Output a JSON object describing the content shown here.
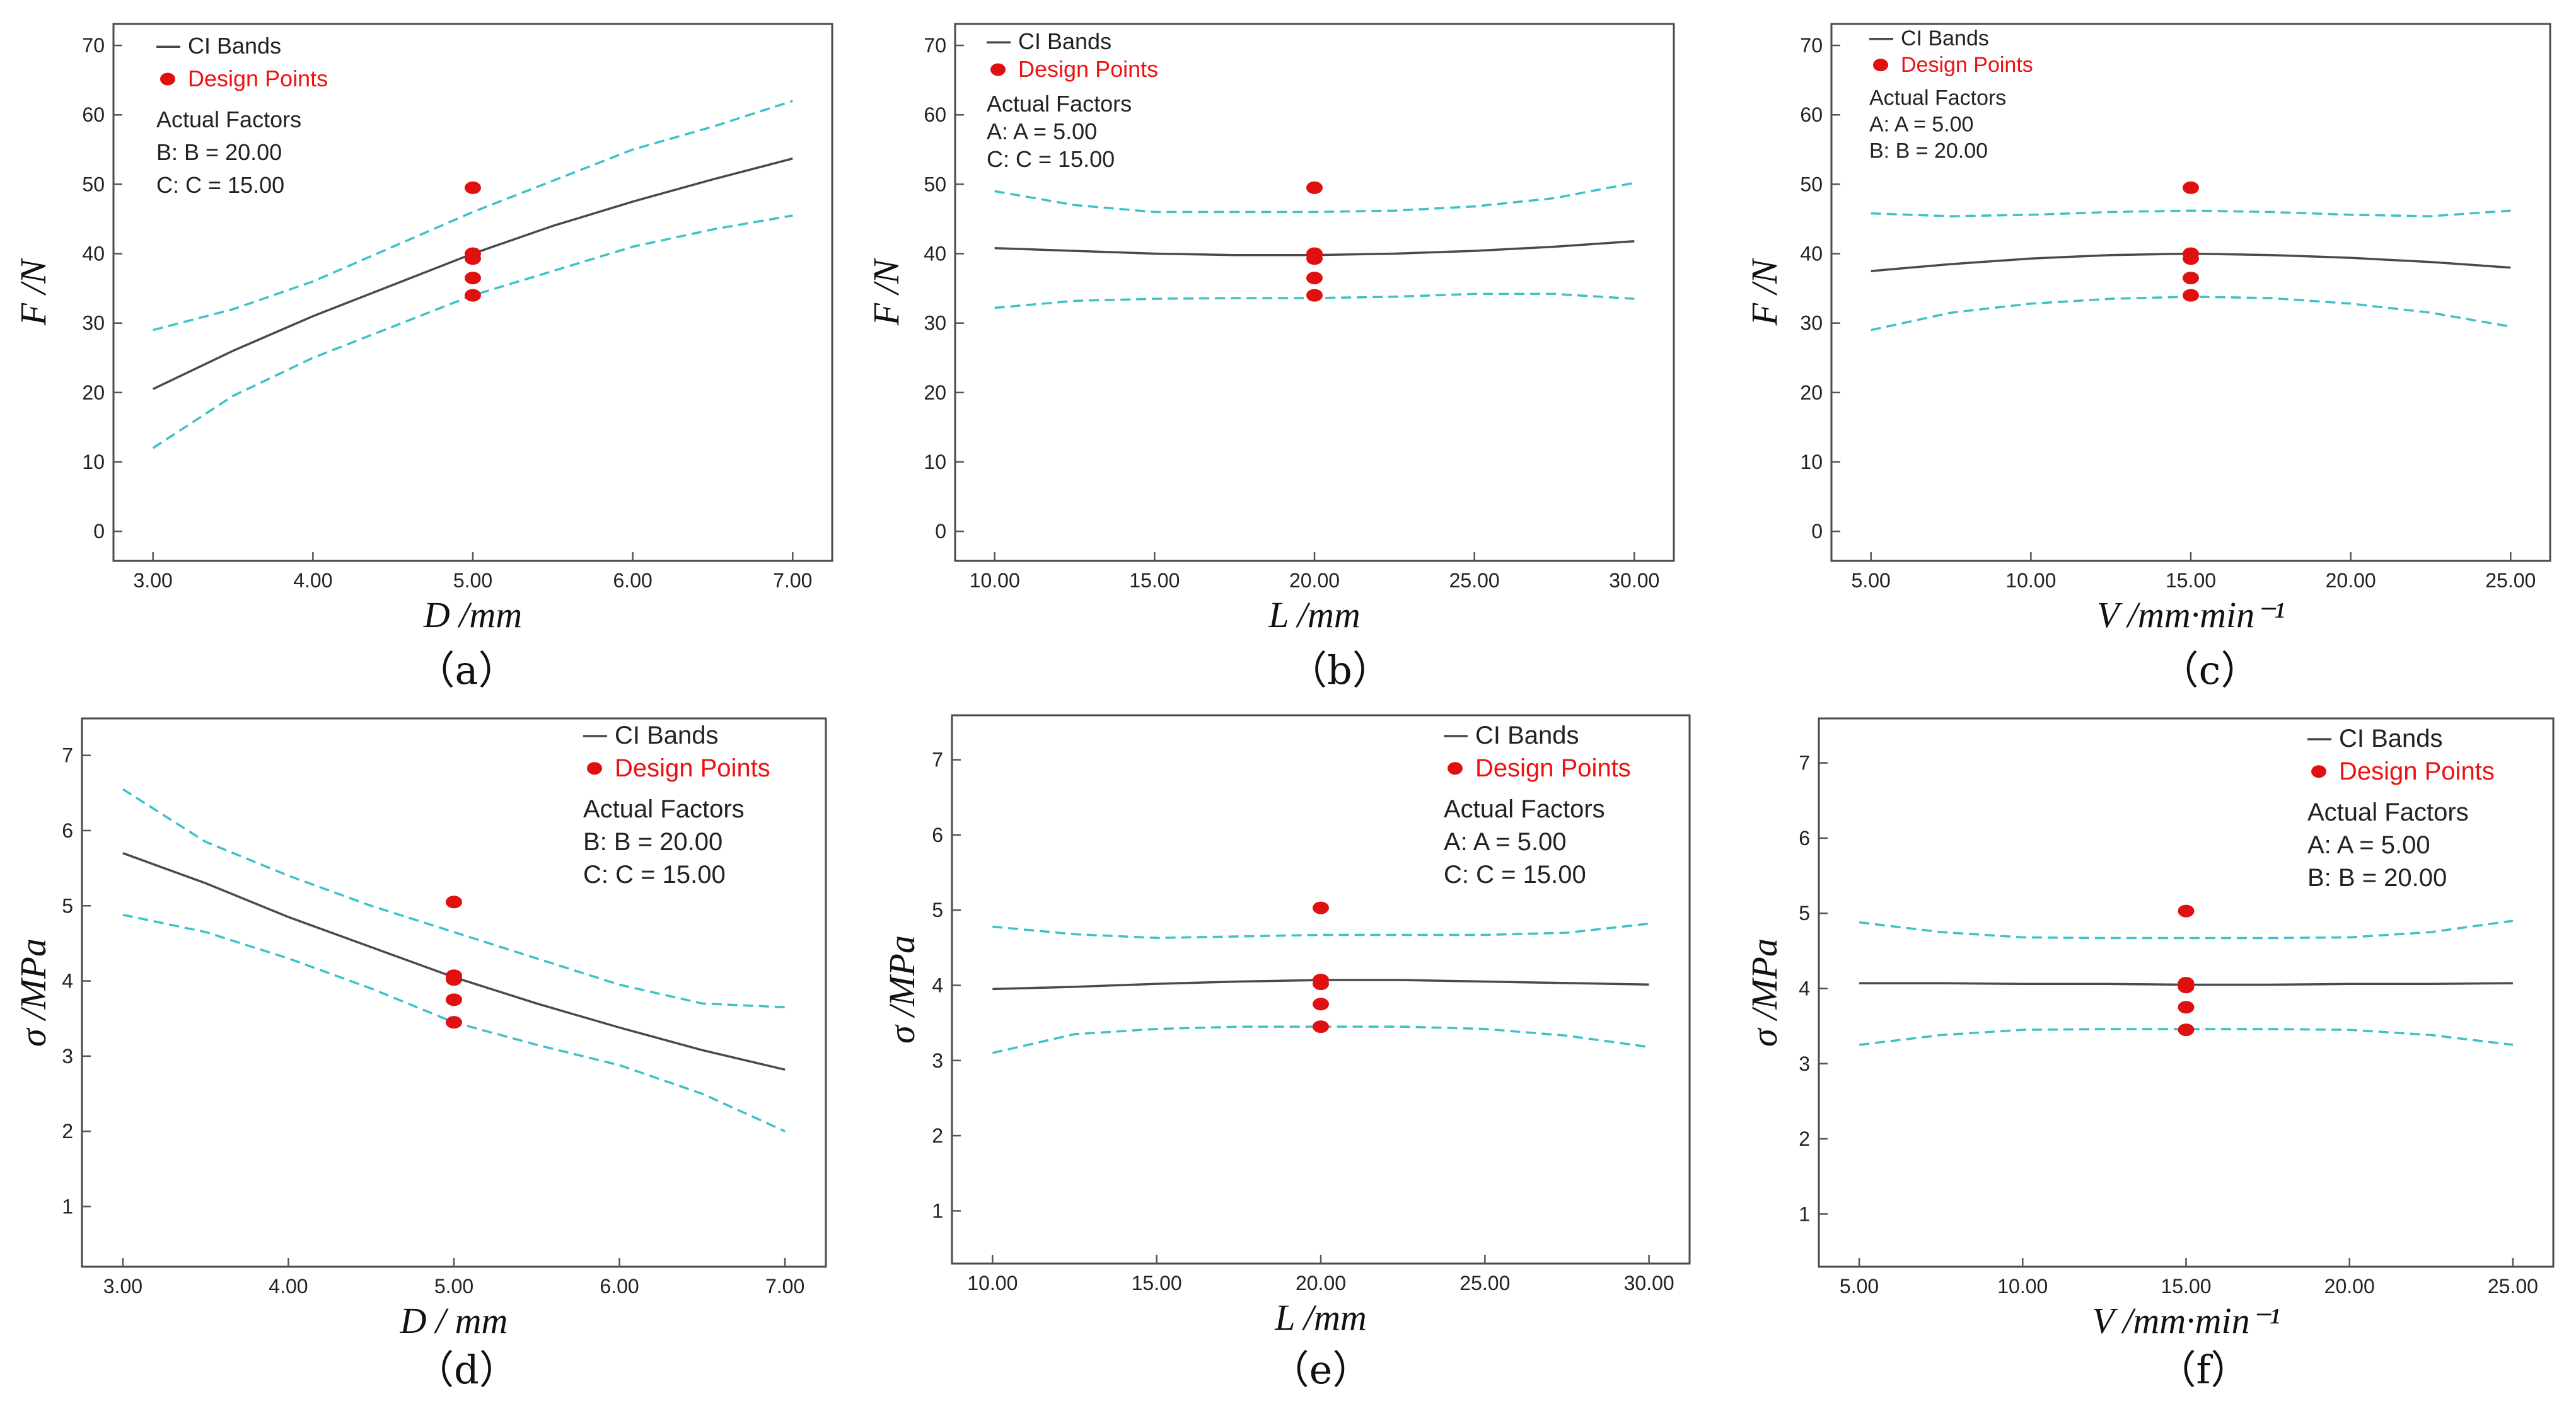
{
  "legend_labels": {
    "ci_bands": "CI Bands",
    "design_points": "Design Points",
    "actual_factors": "Actual Factors"
  },
  "colors": {
    "fit_line": "#4a4a4a",
    "ci_band": "#3cc2c8",
    "design_point": "#e01010",
    "legend_design_points_text": "#ee1111"
  },
  "chart_data": [
    {
      "panel_label": "（a）",
      "type": "line",
      "xlabel": "D /mm",
      "ylabel": "F /N",
      "xlim": [
        3,
        7
      ],
      "ylim": [
        0,
        70
      ],
      "x_ticks": [
        "3.00",
        "4.00",
        "5.00",
        "6.00",
        "7.00"
      ],
      "y_ticks": [
        "0",
        "10",
        "20",
        "30",
        "40",
        "50",
        "60",
        "70"
      ],
      "actual_factors": [
        "B: B = 20.00",
        "C: C = 15.00"
      ],
      "legend_position": "top-left",
      "series": [
        {
          "role": "fit",
          "x": [
            3,
            3.5,
            4,
            4.5,
            5,
            5.5,
            6,
            6.5,
            7
          ],
          "y": [
            20.5,
            26,
            31,
            35.5,
            40,
            44,
            47.5,
            50.7,
            53.7
          ]
        },
        {
          "role": "ci_upper",
          "x": [
            3,
            3.5,
            4,
            4.5,
            5,
            5.5,
            6,
            6.5,
            7
          ],
          "y": [
            29,
            32,
            36,
            41,
            46,
            50.5,
            55,
            58.3,
            62
          ]
        },
        {
          "role": "ci_lower",
          "x": [
            3,
            3.5,
            4,
            4.5,
            5,
            5.5,
            6,
            6.5,
            7
          ],
          "y": [
            12,
            19.5,
            25,
            29.5,
            34,
            37.5,
            41,
            43.5,
            45.5
          ]
        }
      ],
      "design_points": [
        {
          "x": 5,
          "y": 49.5
        },
        {
          "x": 5,
          "y": 40
        },
        {
          "x": 5,
          "y": 39.3
        },
        {
          "x": 5,
          "y": 36.5
        },
        {
          "x": 5,
          "y": 34
        }
      ]
    },
    {
      "panel_label": "（b）",
      "type": "line",
      "xlabel": "L /mm",
      "ylabel": "F /N",
      "xlim": [
        10,
        30
      ],
      "ylim": [
        0,
        70
      ],
      "x_ticks": [
        "10.00",
        "15.00",
        "20.00",
        "25.00",
        "30.00"
      ],
      "y_ticks": [
        "0",
        "10",
        "20",
        "30",
        "40",
        "50",
        "60",
        "70"
      ],
      "actual_factors": [
        "A: A = 5.00",
        "C: C = 15.00"
      ],
      "legend_position": "top-left",
      "series": [
        {
          "role": "fit",
          "x": [
            10,
            12.5,
            15,
            17.5,
            20,
            22.5,
            25,
            27.5,
            30
          ],
          "y": [
            40.8,
            40.4,
            40,
            39.8,
            39.8,
            40,
            40.4,
            41,
            41.8
          ]
        },
        {
          "role": "ci_upper",
          "x": [
            10,
            12.5,
            15,
            17.5,
            20,
            22.5,
            25,
            27.5,
            30
          ],
          "y": [
            49,
            47,
            46,
            46,
            46,
            46.2,
            46.8,
            48,
            50.2
          ]
        },
        {
          "role": "ci_lower",
          "x": [
            10,
            12.5,
            15,
            17.5,
            20,
            22.5,
            25,
            27.5,
            30
          ],
          "y": [
            32.2,
            33.2,
            33.5,
            33.6,
            33.6,
            33.8,
            34.2,
            34.2,
            33.5
          ]
        }
      ],
      "design_points": [
        {
          "x": 20,
          "y": 49.5
        },
        {
          "x": 20,
          "y": 40
        },
        {
          "x": 20,
          "y": 39.3
        },
        {
          "x": 20,
          "y": 36.5
        },
        {
          "x": 20,
          "y": 34
        }
      ]
    },
    {
      "panel_label": "（c）",
      "type": "line",
      "xlabel": "V /mm·min⁻¹",
      "ylabel": "F /N",
      "xlim": [
        5,
        25
      ],
      "ylim": [
        0,
        70
      ],
      "x_ticks": [
        "5.00",
        "10.00",
        "15.00",
        "20.00",
        "25.00"
      ],
      "y_ticks": [
        "0",
        "10",
        "20",
        "30",
        "40",
        "50",
        "60",
        "70"
      ],
      "actual_factors": [
        "A: A = 5.00",
        "B: B = 20.00"
      ],
      "legend_position": "top-left",
      "series": [
        {
          "role": "fit",
          "x": [
            5,
            7.5,
            10,
            12.5,
            15,
            17.5,
            20,
            22.5,
            25
          ],
          "y": [
            37.5,
            38.5,
            39.3,
            39.8,
            40,
            39.8,
            39.4,
            38.8,
            38
          ]
        },
        {
          "role": "ci_upper",
          "x": [
            5,
            7.5,
            10,
            12.5,
            15,
            17.5,
            20,
            22.5,
            25
          ],
          "y": [
            45.8,
            45.4,
            45.6,
            46,
            46.2,
            46,
            45.6,
            45.4,
            46.2
          ]
        },
        {
          "role": "ci_lower",
          "x": [
            5,
            7.5,
            10,
            12.5,
            15,
            17.5,
            20,
            22.5,
            25
          ],
          "y": [
            29,
            31.5,
            32.8,
            33.5,
            33.8,
            33.6,
            32.8,
            31.5,
            29.5
          ]
        }
      ],
      "design_points": [
        {
          "x": 15,
          "y": 49.5
        },
        {
          "x": 15,
          "y": 40
        },
        {
          "x": 15,
          "y": 39.3
        },
        {
          "x": 15,
          "y": 36.5
        },
        {
          "x": 15,
          "y": 34
        }
      ]
    },
    {
      "panel_label": "（d）",
      "type": "line",
      "xlabel": "D / mm",
      "ylabel": "σ /MPa",
      "xlim": [
        3,
        7
      ],
      "ylim": [
        0.6,
        7.2
      ],
      "x_ticks": [
        "3.00",
        "4.00",
        "5.00",
        "6.00",
        "7.00"
      ],
      "y_ticks": [
        "1",
        "2",
        "3",
        "4",
        "5",
        "6",
        "7"
      ],
      "actual_factors": [
        "B: B = 20.00",
        "C: C = 15.00"
      ],
      "legend_position": "top-right",
      "series": [
        {
          "role": "fit",
          "x": [
            3,
            3.5,
            4,
            4.5,
            5,
            5.5,
            6,
            6.5,
            7
          ],
          "y": [
            5.7,
            5.3,
            4.85,
            4.45,
            4.05,
            3.7,
            3.38,
            3.08,
            2.82
          ]
        },
        {
          "role": "ci_upper",
          "x": [
            3,
            3.5,
            4,
            4.5,
            5,
            5.5,
            6,
            6.5,
            7
          ],
          "y": [
            6.55,
            5.85,
            5.4,
            5.0,
            4.65,
            4.3,
            3.95,
            3.7,
            3.65
          ]
        },
        {
          "role": "ci_lower",
          "x": [
            3,
            3.5,
            4,
            4.5,
            5,
            5.5,
            6,
            6.5,
            7
          ],
          "y": [
            4.88,
            4.65,
            4.3,
            3.9,
            3.45,
            3.15,
            2.88,
            2.5,
            2.0
          ]
        }
      ],
      "design_points": [
        {
          "x": 5,
          "y": 5.05
        },
        {
          "x": 5,
          "y": 4.07
        },
        {
          "x": 5,
          "y": 4.02
        },
        {
          "x": 5,
          "y": 3.75
        },
        {
          "x": 5,
          "y": 3.45
        }
      ]
    },
    {
      "panel_label": "（e）",
      "type": "line",
      "xlabel": "L /mm",
      "ylabel": "σ /MPa",
      "xlim": [
        10,
        30
      ],
      "ylim": [
        0.7,
        7.3
      ],
      "x_ticks": [
        "10.00",
        "15.00",
        "20.00",
        "25.00",
        "30.00"
      ],
      "y_ticks": [
        "1",
        "2",
        "3",
        "4",
        "5",
        "6",
        "7"
      ],
      "actual_factors": [
        "A: A = 5.00",
        "C: C = 15.00"
      ],
      "legend_position": "top-right",
      "series": [
        {
          "role": "fit",
          "x": [
            10,
            12.5,
            15,
            17.5,
            20,
            22.5,
            25,
            27.5,
            30
          ],
          "y": [
            3.95,
            3.98,
            4.02,
            4.05,
            4.07,
            4.07,
            4.05,
            4.03,
            4.01
          ]
        },
        {
          "role": "ci_upper",
          "x": [
            10,
            12.5,
            15,
            17.5,
            20,
            22.5,
            25,
            27.5,
            30
          ],
          "y": [
            4.78,
            4.68,
            4.63,
            4.65,
            4.67,
            4.67,
            4.67,
            4.7,
            4.82
          ]
        },
        {
          "role": "ci_lower",
          "x": [
            10,
            12.5,
            15,
            17.5,
            20,
            22.5,
            25,
            27.5,
            30
          ],
          "y": [
            3.1,
            3.35,
            3.42,
            3.45,
            3.45,
            3.45,
            3.42,
            3.33,
            3.18
          ]
        }
      ],
      "design_points": [
        {
          "x": 20,
          "y": 5.03
        },
        {
          "x": 20,
          "y": 4.07
        },
        {
          "x": 20,
          "y": 4.02
        },
        {
          "x": 20,
          "y": 3.75
        },
        {
          "x": 20,
          "y": 3.45
        }
      ]
    },
    {
      "panel_label": "（f）",
      "type": "line",
      "xlabel": "V /mm·min⁻¹",
      "ylabel": "σ /MPa",
      "xlim": [
        5,
        25
      ],
      "ylim": [
        0.7,
        7.3
      ],
      "x_ticks": [
        "5.00",
        "10.00",
        "15.00",
        "20.00",
        "25.00"
      ],
      "y_ticks": [
        "1",
        "2",
        "3",
        "4",
        "5",
        "6",
        "7"
      ],
      "actual_factors": [
        "A: A = 5.00",
        "B: B = 20.00"
      ],
      "legend_position": "top-right",
      "series": [
        {
          "role": "fit",
          "x": [
            5,
            7.5,
            10,
            12.5,
            15,
            17.5,
            20,
            22.5,
            25
          ],
          "y": [
            4.07,
            4.07,
            4.06,
            4.06,
            4.05,
            4.05,
            4.06,
            4.06,
            4.07
          ]
        },
        {
          "role": "ci_upper",
          "x": [
            5,
            7.5,
            10,
            12.5,
            15,
            17.5,
            20,
            22.5,
            25
          ],
          "y": [
            4.88,
            4.75,
            4.68,
            4.67,
            4.67,
            4.67,
            4.68,
            4.75,
            4.9
          ]
        },
        {
          "role": "ci_lower",
          "x": [
            5,
            7.5,
            10,
            12.5,
            15,
            17.5,
            20,
            22.5,
            25
          ],
          "y": [
            3.25,
            3.38,
            3.45,
            3.46,
            3.46,
            3.46,
            3.45,
            3.38,
            3.25
          ]
        }
      ],
      "design_points": [
        {
          "x": 15,
          "y": 5.03
        },
        {
          "x": 15,
          "y": 4.07
        },
        {
          "x": 15,
          "y": 4.02
        },
        {
          "x": 15,
          "y": 3.75
        },
        {
          "x": 15,
          "y": 3.45
        }
      ]
    }
  ]
}
